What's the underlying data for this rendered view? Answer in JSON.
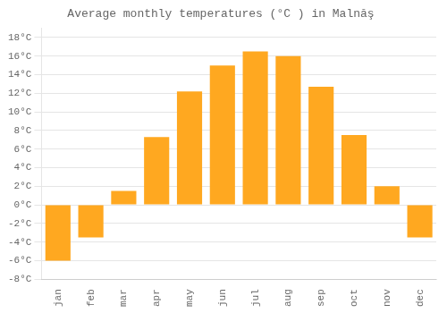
{
  "chart_data": {
    "type": "bar",
    "title": "Average monthly temperatures (°C ) in Malnăş",
    "categories": [
      "jan",
      "feb",
      "mar",
      "apr",
      "may",
      "jun",
      "jul",
      "aug",
      "sep",
      "oct",
      "nov",
      "dec"
    ],
    "values": [
      -6.0,
      -3.5,
      1.5,
      7.3,
      12.2,
      15.0,
      16.5,
      16.0,
      12.7,
      7.5,
      2.0,
      -3.5
    ],
    "color": "#FFA820",
    "ylim": [
      -8,
      19
    ],
    "yticks": [
      {
        "value": -8,
        "label": "-8°C"
      },
      {
        "value": -6,
        "label": "-6°C"
      },
      {
        "value": -4,
        "label": "-4°C"
      },
      {
        "value": -2,
        "label": "-2°C"
      },
      {
        "value": 0,
        "label": "0°C"
      },
      {
        "value": 2,
        "label": "2°C"
      },
      {
        "value": 4,
        "label": "4°C"
      },
      {
        "value": 6,
        "label": "6°C"
      },
      {
        "value": 8,
        "label": "8°C"
      },
      {
        "value": 10,
        "label": "10°C"
      },
      {
        "value": 12,
        "label": "12°C"
      },
      {
        "value": 14,
        "label": "14°C"
      },
      {
        "value": 16,
        "label": "16°C"
      },
      {
        "value": 18,
        "label": "18°C"
      }
    ],
    "grid": true
  }
}
